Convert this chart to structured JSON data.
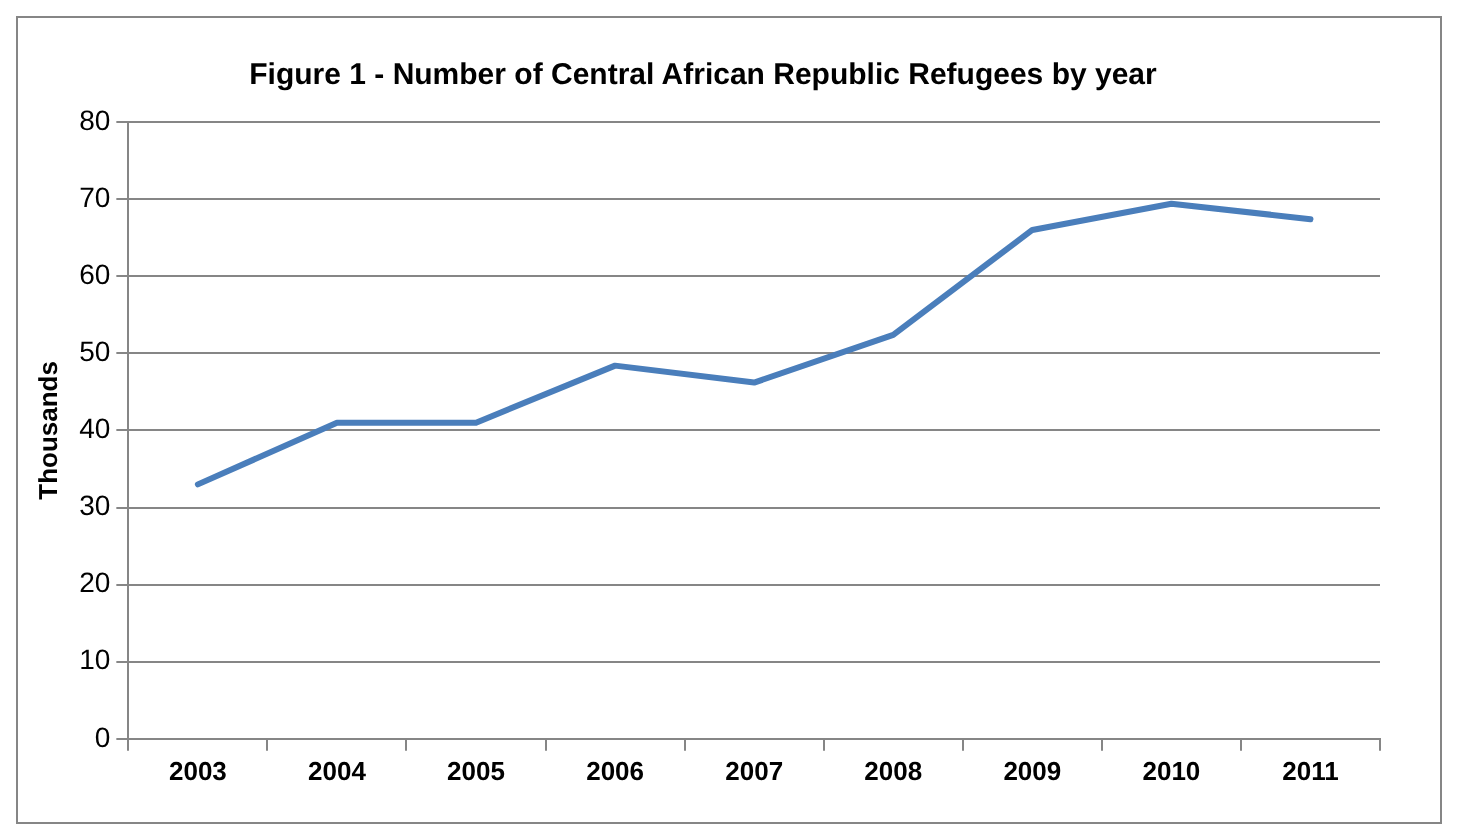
{
  "chart_data": {
    "type": "line",
    "title": "Figure 1 - Number of Central African Republic Refugees by year",
    "ylabel": "Thousands",
    "categories": [
      "2003",
      "2004",
      "2005",
      "2006",
      "2007",
      "2008",
      "2009",
      "2010",
      "2011"
    ],
    "series": [
      {
        "color": "#4a7ebb",
        "values": [
          33,
          41,
          41,
          48.4,
          46.2,
          52.4,
          66,
          69.4,
          67.4
        ]
      }
    ],
    "ylim": [
      0,
      80
    ],
    "yticks": [
      0,
      10,
      20,
      30,
      40,
      50,
      60,
      70,
      80
    ],
    "grid": "y",
    "legend": false,
    "marker": "none",
    "line_style": "solid"
  }
}
